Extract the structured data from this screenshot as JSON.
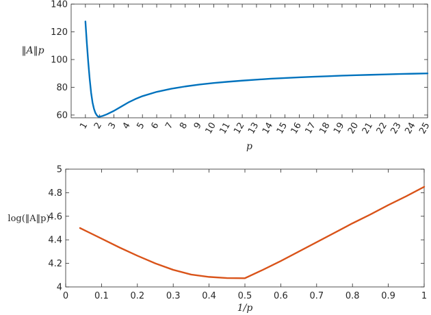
{
  "chart_data": [
    {
      "type": "line",
      "xlabel": "p",
      "ylabel": "‖A‖p",
      "xlim": [
        0,
        25
      ],
      "ylim": [
        58,
        140
      ],
      "yticks": [
        60,
        80,
        100,
        120,
        140
      ],
      "xticks": [
        1,
        2,
        3,
        4,
        5,
        6,
        7,
        8,
        9,
        10,
        11,
        12,
        13,
        14,
        15,
        16,
        17,
        18,
        19,
        20,
        21,
        22,
        23,
        24,
        25
      ],
      "xtick_rotation": 60,
      "grid": false,
      "series": [
        {
          "color": "#0072BD",
          "x": [
            1,
            1.1,
            1.2,
            1.3,
            1.4,
            1.5,
            1.6,
            1.7,
            1.8,
            1.9,
            2,
            2.2,
            2.5,
            3,
            3.5,
            4,
            4.5,
            5,
            6,
            7,
            8,
            9,
            10,
            11,
            12,
            13,
            14,
            15,
            16,
            17,
            18,
            19,
            20,
            21,
            22,
            23,
            24,
            25
          ],
          "y": [
            127.5,
            112,
            98,
            86,
            76,
            69,
            64.5,
            61.5,
            59.8,
            58.8,
            58.8,
            59.3,
            60.5,
            63,
            66,
            69,
            71.5,
            73.6,
            76.7,
            78.9,
            80.6,
            82,
            83.1,
            84,
            84.8,
            85.5,
            86.2,
            86.7,
            87.2,
            87.6,
            88,
            88.4,
            88.7,
            89,
            89.3,
            89.6,
            89.8,
            90
          ]
        }
      ]
    },
    {
      "type": "line",
      "xlabel": "1/p",
      "ylabel": "log(‖A‖p)",
      "xlim": [
        0,
        1
      ],
      "ylim": [
        4,
        5
      ],
      "yticks": [
        4,
        4.2,
        4.4,
        4.6,
        4.8,
        5
      ],
      "xticks": [
        0,
        0.1,
        0.2,
        0.3,
        0.4,
        0.5,
        0.6,
        0.7,
        0.8,
        0.9,
        1
      ],
      "grid": false,
      "series": [
        {
          "color": "#D95319",
          "x": [
            0.04,
            0.1,
            0.15,
            0.2,
            0.25,
            0.3,
            0.35,
            0.4,
            0.45,
            0.5,
            0.55,
            0.6,
            0.65,
            0.7,
            0.75,
            0.8,
            0.85,
            0.9,
            0.95,
            1.0
          ],
          "y": [
            4.5,
            4.41,
            4.335,
            4.265,
            4.2,
            4.145,
            4.105,
            4.085,
            4.075,
            4.074,
            4.145,
            4.22,
            4.3,
            4.38,
            4.46,
            4.54,
            4.615,
            4.695,
            4.77,
            4.85
          ]
        }
      ]
    }
  ]
}
